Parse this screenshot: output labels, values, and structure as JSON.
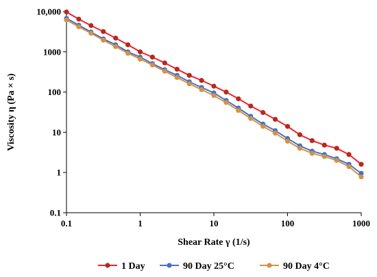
{
  "chart_data": {
    "type": "line",
    "title": "",
    "xlabel": "Shear Rate γ (1/s)",
    "ylabel": "Viscosity η (Pa × s)",
    "xscale": "log",
    "yscale": "log",
    "xlim": [
      0.1,
      1000
    ],
    "ylim": [
      0.1,
      10000
    ],
    "x_tick_labels": [
      "0.1",
      "1",
      "10",
      "100",
      "1000"
    ],
    "y_tick_labels": [
      "0.1",
      "1",
      "10",
      "100",
      "1000",
      "10,000"
    ],
    "grid": false,
    "legend_position": "bottom",
    "x": [
      0.1,
      0.1468,
      0.2154,
      0.3162,
      0.4642,
      0.6813,
      1.0,
      1.468,
      2.154,
      3.162,
      4.642,
      6.813,
      10.0,
      14.68,
      21.54,
      31.62,
      46.42,
      68.13,
      100.0,
      146.8,
      215.4,
      316.2,
      464.2,
      681.3,
      1000.0
    ],
    "series": [
      {
        "name": "1 Day",
        "color": "#f21f2e",
        "marker_color": "#b8281d",
        "values": [
          9800,
          6500,
          4500,
          3200,
          2200,
          1500,
          1000,
          740,
          530,
          370,
          260,
          195,
          140,
          100,
          68,
          45,
          31,
          21,
          14,
          8.7,
          6.2,
          4.8,
          4.0,
          2.8,
          1.6
        ]
      },
      {
        "name": "90 Day 25°C",
        "color": "#4472c4",
        "marker_color": "#4472c4",
        "values": [
          6800,
          4600,
          3100,
          2100,
          1500,
          1000,
          740,
          510,
          360,
          260,
          180,
          130,
          95,
          62,
          40,
          25,
          16,
          11,
          7.0,
          4.6,
          3.4,
          2.8,
          2.2,
          1.6,
          0.95
        ]
      },
      {
        "name": "90 Day 4°C",
        "color": "#d1924a",
        "marker_color": "#d1924a",
        "values": [
          6200,
          4200,
          2900,
          1950,
          1350,
          920,
          660,
          470,
          330,
          230,
          160,
          115,
          82,
          55,
          35,
          22,
          14,
          9.5,
          6.0,
          4.0,
          3.0,
          2.5,
          2.0,
          1.4,
          0.78
        ]
      }
    ]
  }
}
